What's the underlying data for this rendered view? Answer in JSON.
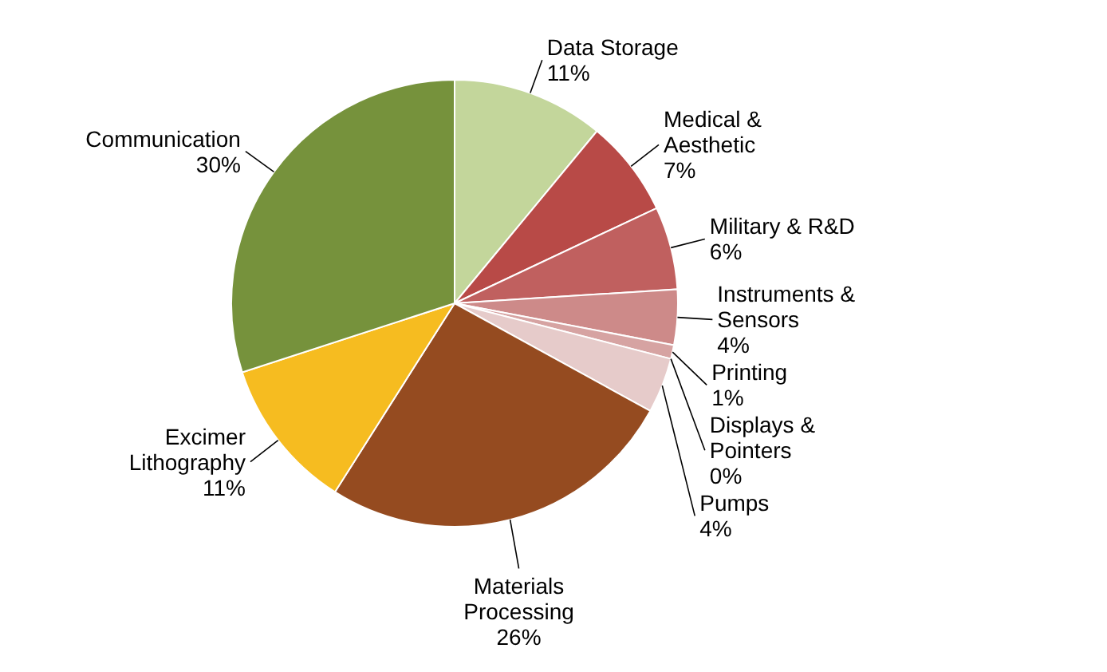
{
  "chart_data": {
    "type": "pie",
    "categories": [
      "Data Storage",
      "Medical & Aesthetic",
      "Military & R&D",
      "Instruments & Sensors",
      "Printing",
      "Displays & Pointers",
      "Pumps",
      "Materials Processing",
      "Excimer Lithography",
      "Communication"
    ],
    "values": [
      11,
      7,
      6,
      4,
      1,
      0,
      4,
      26,
      11,
      30
    ],
    "value_labels": [
      "11%",
      "7%",
      "6%",
      "4%",
      "1%",
      "0%",
      "4%",
      "26%",
      "11%",
      "30%"
    ],
    "colors": [
      "#c3d69b",
      "#b84a47",
      "#c0605f",
      "#cd8a89",
      "#d6a3a2",
      "#ddb6b5",
      "#e6cbca",
      "#954b20",
      "#f6bc20",
      "#76923c"
    ]
  }
}
